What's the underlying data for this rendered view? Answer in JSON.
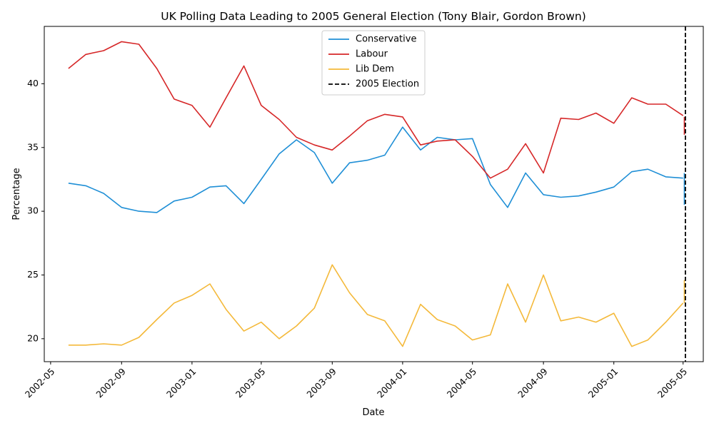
{
  "chart_data": {
    "type": "line",
    "title": "UK Polling Data Leading to 2005 General Election (Tony Blair, Gordon Brown)",
    "xlabel": "Date",
    "ylabel": "Percentage",
    "x_ticks": [
      "2002-05",
      "2002-09",
      "2003-01",
      "2003-05",
      "2003-09",
      "2004-01",
      "2004-05",
      "2004-09",
      "2005-01",
      "2005-05"
    ],
    "y_ticks": [
      20,
      25,
      30,
      35,
      40
    ],
    "ylim": [
      18.2,
      44.5
    ],
    "xlim": [
      "2002-04-20",
      "2005-06-05"
    ],
    "grid": false,
    "legend_position": "top-center",
    "x": [
      "2002-06-01",
      "2002-07-01",
      "2002-08-01",
      "2002-09-01",
      "2002-10-01",
      "2002-11-01",
      "2002-12-01",
      "2003-01-01",
      "2003-02-01",
      "2003-03-01",
      "2003-04-01",
      "2003-05-01",
      "2003-06-01",
      "2003-07-01",
      "2003-08-01",
      "2003-09-01",
      "2003-10-01",
      "2003-11-01",
      "2003-12-01",
      "2004-01-01",
      "2004-02-01",
      "2004-03-01",
      "2004-04-01",
      "2004-05-01",
      "2004-06-01",
      "2004-07-01",
      "2004-08-01",
      "2004-09-01",
      "2004-10-01",
      "2004-11-01",
      "2004-12-01",
      "2005-01-01",
      "2005-02-01",
      "2005-03-01",
      "2005-04-01",
      "2005-05-01"
    ],
    "series": [
      {
        "name": "Conservative",
        "color": "#1f8fd6",
        "values": [
          32.2,
          32.0,
          31.4,
          30.3,
          30.0,
          29.9,
          30.8,
          31.1,
          31.9,
          32.0,
          30.6,
          32.5,
          34.5,
          35.6,
          34.6,
          32.2,
          33.8,
          34.0,
          34.4,
          36.6,
          34.8,
          35.8,
          35.6,
          35.7,
          32.1,
          30.3,
          33.0,
          31.3,
          31.1,
          31.2,
          31.5,
          31.9,
          33.1,
          33.3,
          32.7,
          32.6
        ],
        "election_range": [
          30.5,
          33.0
        ]
      },
      {
        "name": "Labour",
        "color": "#d62728",
        "values": [
          41.2,
          42.3,
          42.6,
          43.3,
          43.1,
          41.2,
          38.8,
          38.3,
          36.6,
          38.9,
          41.4,
          38.3,
          37.2,
          35.8,
          35.2,
          34.8,
          35.9,
          37.1,
          37.6,
          37.4,
          35.2,
          35.5,
          35.6,
          34.3,
          32.6,
          33.3,
          35.3,
          33.0,
          37.3,
          37.2,
          37.7,
          36.9,
          38.9,
          38.4,
          38.4,
          37.5
        ],
        "election_range": [
          36.0,
          37.4
        ]
      },
      {
        "name": "Lib Dem",
        "color": "#f4b93a",
        "values": [
          19.5,
          19.5,
          19.6,
          19.5,
          20.1,
          21.5,
          22.8,
          23.4,
          24.3,
          22.3,
          20.6,
          21.3,
          20.0,
          21.0,
          22.4,
          25.8,
          23.6,
          21.9,
          21.4,
          19.4,
          22.7,
          21.5,
          21.0,
          19.9,
          20.3,
          24.3,
          21.3,
          25.0,
          21.4,
          21.7,
          21.3,
          22.0,
          19.4,
          19.9,
          21.3,
          22.8
        ],
        "election_range": [
          22.8,
          24.6
        ]
      }
    ],
    "vline": {
      "date": "2005-05-05",
      "label": "2005 Election",
      "color": "#000000",
      "style": "dashed"
    }
  }
}
